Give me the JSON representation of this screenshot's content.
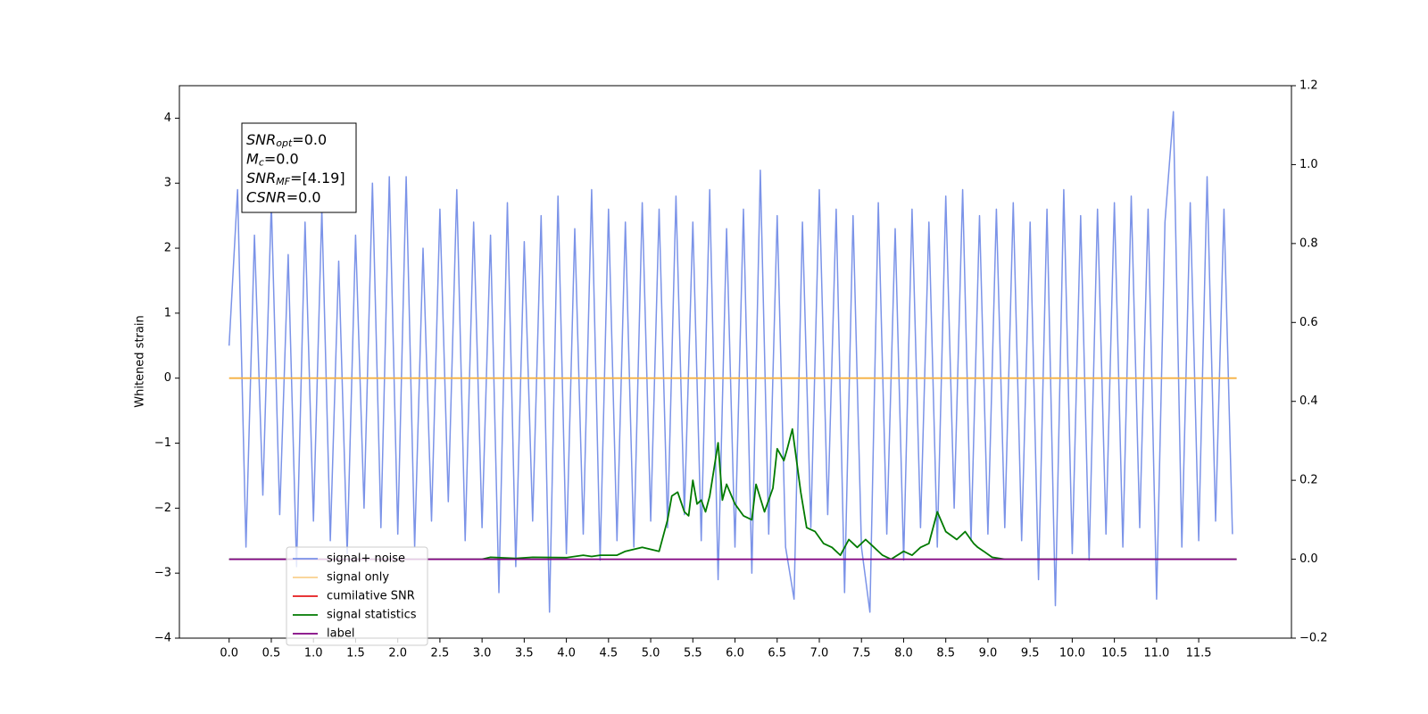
{
  "chart_data": {
    "type": "line",
    "ylabel": "Whitened strain",
    "xlim": [
      -0.59,
      12.6
    ],
    "ylim": [
      -4,
      4.5
    ],
    "y2lim": [
      -0.2,
      1.2
    ],
    "xticks": [
      {
        "value": 0,
        "label": "0.0"
      },
      0.5,
      {
        "value": 1,
        "label": "1.0"
      },
      1.5,
      {
        "value": 2,
        "label": "2.0"
      },
      2.5,
      {
        "value": 3,
        "label": "3.0"
      },
      3.5,
      {
        "value": 4,
        "label": "4.0"
      },
      4.5,
      {
        "value": 5,
        "label": "5.0"
      },
      5.5,
      {
        "value": 6,
        "label": "6.0"
      },
      6.5,
      {
        "value": 7,
        "label": "7.0"
      },
      7.5,
      {
        "value": 8,
        "label": "8.0"
      },
      8.5,
      {
        "value": 9,
        "label": "9.0"
      },
      9.5,
      {
        "value": 10,
        "label": "10.0"
      },
      10.5,
      {
        "value": 11,
        "label": "11.0"
      },
      11.5
    ],
    "yticks": [
      {
        "value": -4,
        "label": "−4"
      },
      {
        "value": -3,
        "label": "−3"
      },
      {
        "value": -2,
        "label": "−2"
      },
      {
        "value": -1,
        "label": "−1"
      },
      0,
      1,
      2,
      3,
      4
    ],
    "y2ticks": [
      {
        "value": -0.2,
        "label": "−0.2"
      },
      {
        "value": 0,
        "label": "0.0"
      },
      0.2,
      0.4,
      0.6,
      0.8,
      {
        "value": 1,
        "label": "1.0"
      },
      1.2
    ],
    "annotation": [
      {
        "main": "SNR",
        "sub": "opt",
        "rest": "=0.0"
      },
      {
        "main": "M",
        "sub": "c",
        "rest": "=0.0"
      },
      {
        "main": "SNR",
        "sub": "MF",
        "rest": "=[4.19]"
      },
      {
        "main": "CSNR",
        "rest": "=0.0"
      }
    ],
    "series": [
      {
        "name": "signal+ noise",
        "color": "#7b93e8",
        "x": [
          0,
          0.1,
          0.2,
          0.3,
          0.4,
          0.5,
          0.6,
          0.7,
          0.8,
          0.9,
          1,
          1.1,
          1.2,
          1.3,
          1.4,
          1.5,
          1.6,
          1.7,
          1.8,
          1.9,
          2,
          2.1,
          2.2,
          2.3,
          2.4,
          2.5,
          2.6,
          2.7,
          2.8,
          2.9,
          3,
          3.1,
          3.2,
          3.3,
          3.4,
          3.5,
          3.6,
          3.7,
          3.8,
          3.9,
          4,
          4.1,
          4.2,
          4.3,
          4.4,
          4.5,
          4.6,
          4.7,
          4.8,
          4.9,
          5,
          5.1,
          5.2,
          5.3,
          5.4,
          5.5,
          5.6,
          5.7,
          5.8,
          5.9,
          6,
          6.1,
          6.2,
          6.3,
          6.4,
          6.5,
          6.6,
          6.7,
          6.8,
          6.9,
          7,
          7.1,
          7.2,
          7.3,
          7.4,
          7.5,
          7.6,
          7.7,
          7.8,
          7.9,
          8,
          8.1,
          8.2,
          8.3,
          8.4,
          8.5,
          8.6,
          8.7,
          8.8,
          8.9,
          9,
          9.1,
          9.2,
          9.3,
          9.4,
          9.5,
          9.6,
          9.7,
          9.8,
          9.9,
          10,
          10.1,
          10.2,
          10.3,
          10.4,
          10.5,
          10.6,
          10.7,
          10.8,
          10.9,
          11,
          11.1,
          11.2,
          11.3,
          11.4,
          11.5,
          11.6,
          11.7,
          11.8,
          11.9
        ],
        "values": [
          0.5,
          2.9,
          -2.6,
          2.2,
          -1.8,
          2.7,
          -2.1,
          1.9,
          -2.9,
          2.4,
          -2.2,
          2.6,
          -2.5,
          1.8,
          -2.7,
          2.2,
          -2.0,
          3.0,
          -2.3,
          3.1,
          -2.4,
          3.1,
          -2.6,
          2.0,
          -2.2,
          2.6,
          -1.9,
          2.9,
          -2.5,
          2.4,
          -2.3,
          2.2,
          -3.3,
          2.7,
          -2.9,
          2.1,
          -2.2,
          2.5,
          -3.6,
          2.8,
          -2.7,
          2.3,
          -2.4,
          2.9,
          -2.8,
          2.6,
          -2.5,
          2.4,
          -2.6,
          2.7,
          -2.2,
          2.6,
          -2.3,
          2.8,
          -2.1,
          2.4,
          -2.5,
          2.9,
          -3.1,
          2.3,
          -2.6,
          2.6,
          -3.0,
          3.2,
          -2.4,
          2.5,
          -2.6,
          -3.4,
          2.4,
          -2.3,
          2.9,
          -2.1,
          2.6,
          -3.3,
          2.5,
          -2.6,
          -3.6,
          2.7,
          -2.4,
          2.3,
          -2.8,
          2.6,
          -2.3,
          2.4,
          -2.6,
          2.8,
          -2.0,
          2.9,
          -2.5,
          2.5,
          -2.4,
          2.6,
          -2.3,
          2.7,
          -2.5,
          2.4,
          -3.1,
          2.6,
          -3.5,
          2.9,
          -2.7,
          2.5,
          -2.8,
          2.6,
          -2.4,
          2.7,
          -2.6,
          2.8,
          -2.3,
          2.6,
          -3.4,
          2.4,
          4.1,
          -2.6,
          2.7,
          -2.5,
          3.1,
          -2.2,
          2.6,
          -2.4
        ]
      },
      {
        "name": "signal only",
        "color": "#f5b041",
        "x": [
          0,
          11.95
        ],
        "values": [
          0,
          0
        ]
      },
      {
        "name": "cumilative SNR",
        "color": "#e41a1c"
      },
      {
        "name": "signal statistics",
        "color": "#007a00",
        "axis": "y2",
        "x": [
          0,
          3,
          3.1,
          3.4,
          3.6,
          4,
          4.2,
          4.3,
          4.4,
          4.6,
          4.7,
          4.9,
          5.1,
          5.2,
          5.25,
          5.32,
          5.4,
          5.45,
          5.5,
          5.55,
          5.6,
          5.65,
          5.7,
          5.8,
          5.85,
          5.9,
          6.0,
          6.1,
          6.2,
          6.25,
          6.35,
          6.45,
          6.5,
          6.58,
          6.62,
          6.68,
          6.78,
          6.85,
          6.95,
          7.05,
          7.15,
          7.25,
          7.35,
          7.45,
          7.55,
          7.65,
          7.75,
          7.85,
          8.0,
          8.1,
          8.2,
          8.3,
          8.4,
          8.5,
          8.63,
          8.73,
          8.83,
          8.88,
          8.95,
          9.05,
          9.2,
          9.4,
          9.6,
          11.95
        ],
        "values": [
          0,
          0,
          0.005,
          0.002,
          0.005,
          0.004,
          0.01,
          0.007,
          0.01,
          0.01,
          0.02,
          0.03,
          0.02,
          0.1,
          0.16,
          0.17,
          0.12,
          0.11,
          0.2,
          0.14,
          0.15,
          0.12,
          0.16,
          0.295,
          0.15,
          0.19,
          0.14,
          0.11,
          0.1,
          0.19,
          0.12,
          0.18,
          0.28,
          0.25,
          0.28,
          0.33,
          0.17,
          0.08,
          0.07,
          0.04,
          0.03,
          0.01,
          0.05,
          0.03,
          0.05,
          0.03,
          0.01,
          0.0,
          0.02,
          0.01,
          0.03,
          0.04,
          0.12,
          0.07,
          0.05,
          0.07,
          0.04,
          0.03,
          0.02,
          0.005,
          0.0,
          0.0,
          0.0,
          0.0
        ]
      },
      {
        "name": "label",
        "color": "#800080",
        "axis": "y2",
        "x": [
          0,
          11.95
        ],
        "values": [
          0,
          0
        ]
      }
    ]
  }
}
